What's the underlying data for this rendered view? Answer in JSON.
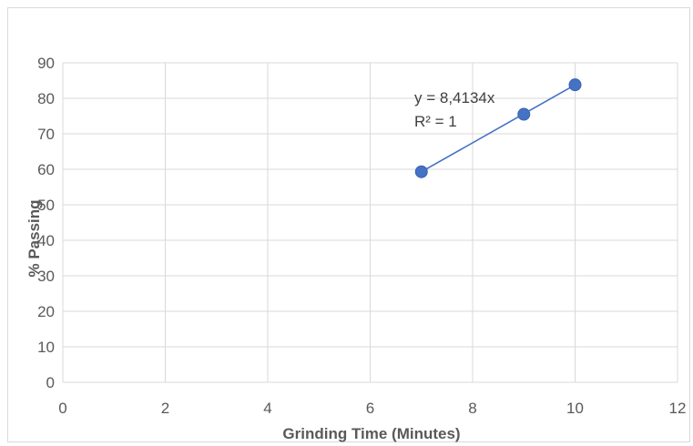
{
  "chart_data": {
    "type": "scatter",
    "xlabel": "Grinding Time (Minutes)",
    "ylabel": "% Passing",
    "xlim": [
      0,
      12
    ],
    "ylim": [
      0,
      90
    ],
    "x_ticks": [
      "0",
      "2",
      "4",
      "6",
      "8",
      "10",
      "12"
    ],
    "y_ticks": [
      "0",
      "10",
      "20",
      "30",
      "40",
      "50",
      "60",
      "70",
      "80",
      "90"
    ],
    "grid": true,
    "legend": "none",
    "series": [
      {
        "x": [
          7,
          9,
          10
        ],
        "y": [
          59.3,
          75.5,
          83.8
        ],
        "marker_color": "#4472c4"
      }
    ],
    "trendline": {
      "x": [
        7,
        10
      ],
      "y": [
        59.3,
        83.8
      ],
      "color": "#4472c4",
      "equation": "y = 8,4134x",
      "r_squared": "R² = 1"
    }
  }
}
